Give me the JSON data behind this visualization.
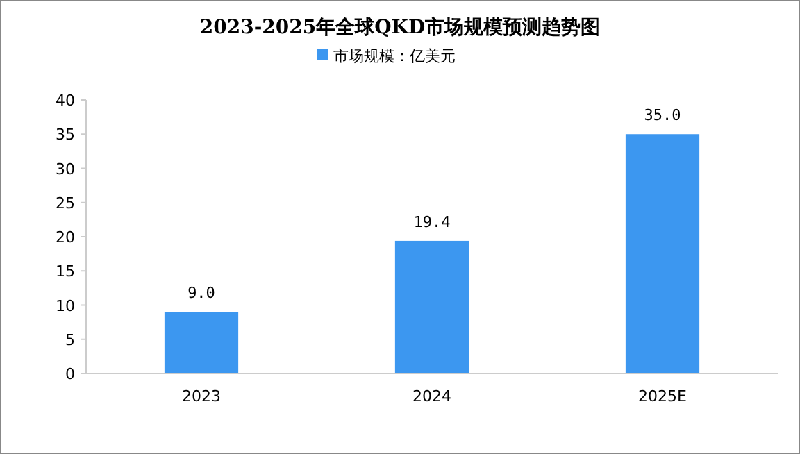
{
  "chart_data": {
    "type": "bar",
    "title": "2023-2025年全球QKD市场规模预测趋势图",
    "categories": [
      "2023",
      "2024",
      "2025E"
    ],
    "series": [
      {
        "name": "市场规模：亿美元",
        "color": "#3c97f0",
        "values": [
          9.0,
          19.4,
          35.0
        ],
        "value_labels": [
          "9.0",
          "19.4",
          "35.0"
        ]
      }
    ],
    "ylim": [
      0,
      40
    ],
    "yticks": [
      0,
      5,
      10,
      15,
      20,
      25,
      30,
      35,
      40
    ],
    "legend": "top",
    "grid": false
  }
}
